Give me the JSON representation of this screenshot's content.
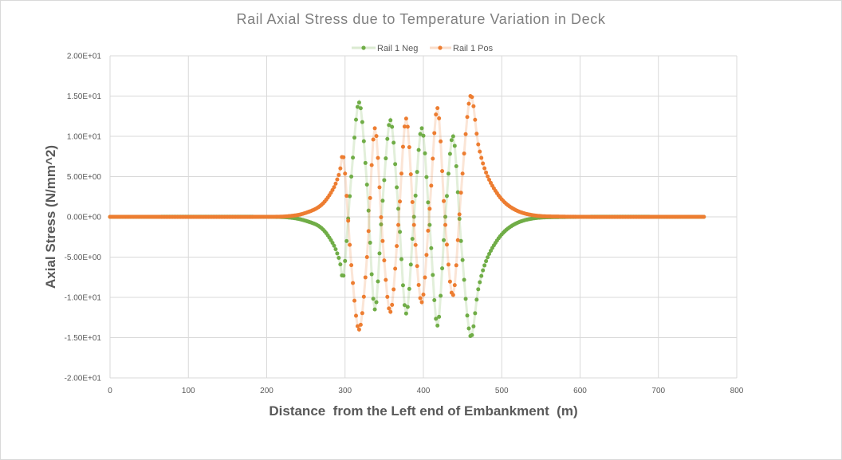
{
  "chart_data": {
    "type": "scatter",
    "title": "Rail Axial Stress due to Temperature Variation in Deck",
    "xlabel": "Distance  from the Left end of Embankment  (m)",
    "ylabel": "Axial Stress (N/mm^2)",
    "xlim": [
      0,
      800
    ],
    "ylim": [
      -20,
      20
    ],
    "xticks": [
      "0",
      "100",
      "200",
      "300",
      "400",
      "500",
      "600",
      "700",
      "800"
    ],
    "yticks": [
      "2.00E+01",
      "1.50E+01",
      "1.00E+01",
      "5.00E+00",
      "0.00E+00",
      "-5.00E+00",
      "-1.00E+01",
      "-1.50E+01",
      "-2.00E+01"
    ],
    "grid": true,
    "legend": "top",
    "x_sample_step": 2,
    "x_range": [
      0,
      758
    ],
    "series": [
      {
        "name": "Rail 1 Neg",
        "color": "#70AD47",
        "keypoints": [
          [
            0,
            0
          ],
          [
            200,
            0
          ],
          [
            230,
            -0.1
          ],
          [
            250,
            -0.5
          ],
          [
            270,
            -1.4
          ],
          [
            285,
            -3.4
          ],
          [
            293,
            -5.4
          ],
          [
            298,
            -7.3
          ],
          [
            308,
            5
          ],
          [
            318,
            14.2
          ],
          [
            328,
            4
          ],
          [
            338,
            -11.5
          ],
          [
            348,
            2
          ],
          [
            358,
            12
          ],
          [
            368,
            1
          ],
          [
            378,
            -12
          ],
          [
            388,
            0
          ],
          [
            398,
            11
          ],
          [
            408,
            -1
          ],
          [
            418,
            -13.5
          ],
          [
            428,
            0
          ],
          [
            438,
            10
          ],
          [
            448,
            -3
          ],
          [
            460,
            -14.8
          ],
          [
            470,
            -9
          ],
          [
            480,
            -5.5
          ],
          [
            495,
            -2.8
          ],
          [
            510,
            -1.3
          ],
          [
            530,
            -0.4
          ],
          [
            560,
            -0.05
          ],
          [
            758,
            0
          ]
        ]
      },
      {
        "name": "Rail 1 Pos",
        "color": "#ED7D31",
        "keypoints": [
          [
            0,
            0
          ],
          [
            200,
            0
          ],
          [
            230,
            0.1
          ],
          [
            250,
            0.5
          ],
          [
            270,
            1.5
          ],
          [
            285,
            3.5
          ],
          [
            293,
            5.5
          ],
          [
            298,
            7.4
          ],
          [
            308,
            -6
          ],
          [
            318,
            -14
          ],
          [
            328,
            -5
          ],
          [
            338,
            11
          ],
          [
            348,
            -3
          ],
          [
            358,
            -11.8
          ],
          [
            368,
            -1
          ],
          [
            378,
            12.2
          ],
          [
            388,
            -1
          ],
          [
            398,
            -10.6
          ],
          [
            408,
            1
          ],
          [
            418,
            13.5
          ],
          [
            428,
            -1
          ],
          [
            438,
            -9.7
          ],
          [
            448,
            3
          ],
          [
            460,
            15
          ],
          [
            470,
            9
          ],
          [
            480,
            5.5
          ],
          [
            495,
            2.8
          ],
          [
            510,
            1.3
          ],
          [
            530,
            0.4
          ],
          [
            560,
            0.05
          ],
          [
            758,
            0
          ]
        ]
      }
    ]
  }
}
